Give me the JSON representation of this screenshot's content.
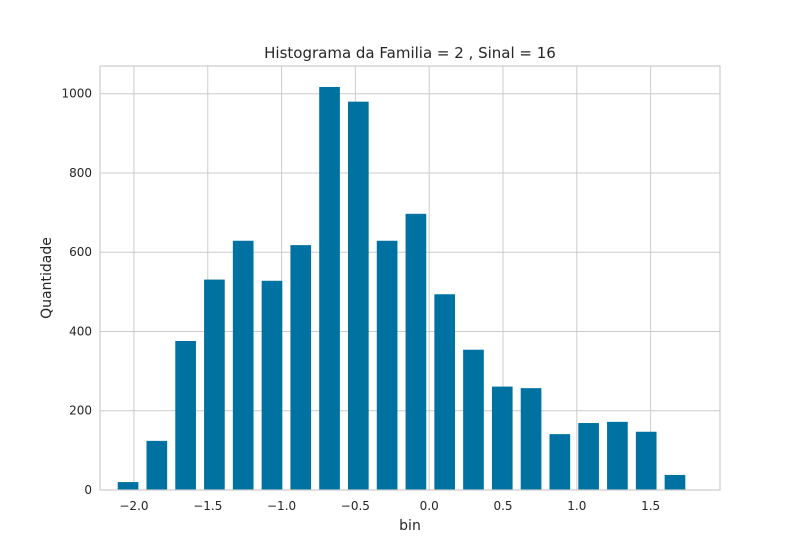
{
  "chart_data": {
    "type": "bar",
    "title": "Histograma da Familia = 2 , Sinal = 16",
    "xlabel": "bin",
    "ylabel": "Quantidade",
    "bar_width": 0.14,
    "x": [
      -2.04,
      -1.845,
      -1.65,
      -1.455,
      -1.26,
      -1.065,
      -0.87,
      -0.675,
      -0.48,
      -0.285,
      -0.09,
      0.105,
      0.3,
      0.495,
      0.69,
      0.885,
      1.08,
      1.275,
      1.47,
      1.665
    ],
    "values": [
      20,
      124,
      376,
      531,
      629,
      528,
      618,
      1017,
      980,
      629,
      697,
      494,
      354,
      261,
      257,
      141,
      169,
      172,
      147,
      38
    ],
    "xlim": [
      -2.23,
      1.97
    ],
    "ylim": [
      0,
      1070
    ],
    "xticks": [
      -2.0,
      -1.5,
      -1.0,
      -0.5,
      0.0,
      0.5,
      1.0,
      1.5
    ],
    "xtick_labels": [
      "−2.0",
      "−1.5",
      "−1.0",
      "−0.5",
      "0.0",
      "0.5",
      "1.0",
      "1.5"
    ],
    "yticks": [
      0,
      200,
      400,
      600,
      800,
      1000
    ],
    "ytick_labels": [
      "0",
      "200",
      "400",
      "600",
      "800",
      "1000"
    ],
    "grid": true,
    "colors": {
      "bar": "#0072a2",
      "grid": "#cccccc"
    }
  }
}
